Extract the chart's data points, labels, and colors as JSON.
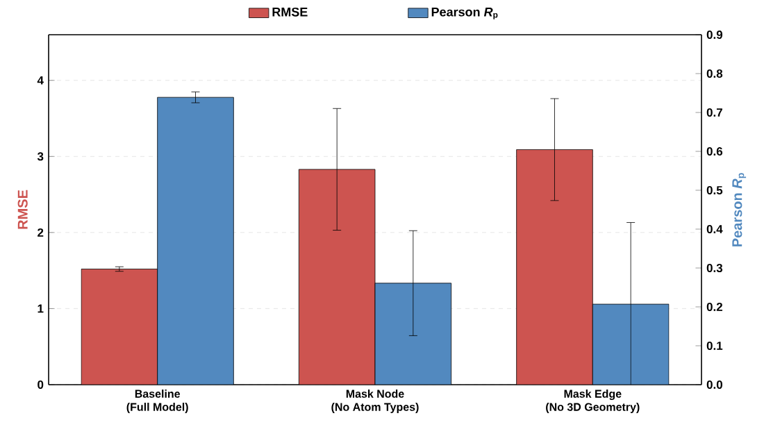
{
  "chart_data": {
    "type": "bar",
    "ylabel": "RMSE",
    "y2label": "Pearson *R*$_{p}$",
    "categories": [
      "Baseline\n(Full Model)",
      "Mask Node\n(No Atom Types)",
      "Mask Edge\n(No 3D Geometry)"
    ],
    "series": [
      {
        "name": "RMSE",
        "color": "#cd5450",
        "values": [
          1.52,
          2.83,
          3.09
        ],
        "errors": [
          0.03,
          0.8,
          0.67
        ]
      },
      {
        "name": "Pearson *R*$_{p}$",
        "color": "#5289bf",
        "axis": "y2",
        "values": [
          0.739,
          0.261,
          0.207
        ],
        "errors": [
          0.014,
          0.135,
          0.21
        ]
      }
    ],
    "ylim": [
      0,
      4.6
    ],
    "yticks": [
      0,
      1,
      2,
      3,
      4
    ],
    "y2lim": [
      0,
      0.9
    ],
    "y2ticks": [
      {
        "value": 0,
        "label": "0.0"
      },
      0.1,
      0.2,
      0.3,
      0.4,
      0.5,
      0.6,
      0.7,
      0.8,
      0.9
    ],
    "grid": "y",
    "legend": "top"
  }
}
